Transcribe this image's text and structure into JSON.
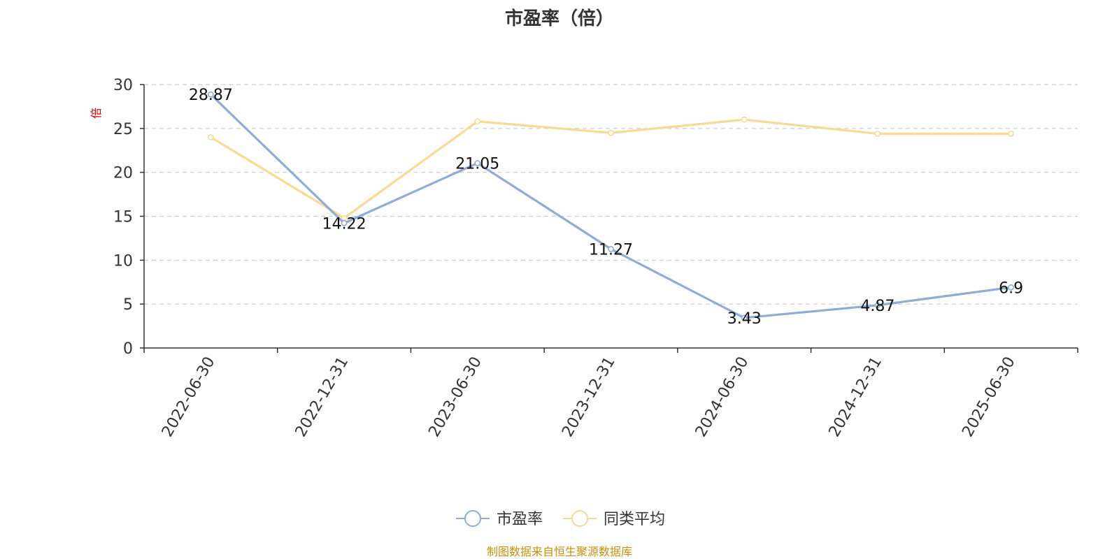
{
  "chart_data": {
    "type": "line",
    "title": "市盈率（倍）",
    "ylabel": "倍",
    "ylim": [
      0,
      30
    ],
    "yticks": [
      0,
      5,
      10,
      15,
      20,
      25,
      30
    ],
    "categories": [
      "2022-06-30",
      "2022-12-31",
      "2023-06-30",
      "2023-12-31",
      "2024-06-30",
      "2024-12-31",
      "2025-06-30"
    ],
    "series": [
      {
        "name": "市盈率",
        "color": "#8eacd7",
        "values": [
          28.87,
          14.22,
          21.05,
          11.27,
          3.43,
          4.87,
          6.9
        ],
        "labels": [
          "28.87",
          "14.22",
          "21.05",
          "11.27",
          "3.43",
          "4.87",
          "6.9"
        ]
      },
      {
        "name": "同类平均",
        "color": "#fbd993",
        "values": [
          24.0,
          14.8,
          25.8,
          24.5,
          26.0,
          24.4,
          24.4
        ]
      }
    ],
    "grid": true,
    "legend": "bottom-center"
  },
  "colors": {
    "unit_label": "#e00000",
    "source_note": "#c8900a",
    "grid": "#cccccc",
    "axis": "#333333"
  },
  "source_note": "制图数据来自恒生聚源数据库"
}
